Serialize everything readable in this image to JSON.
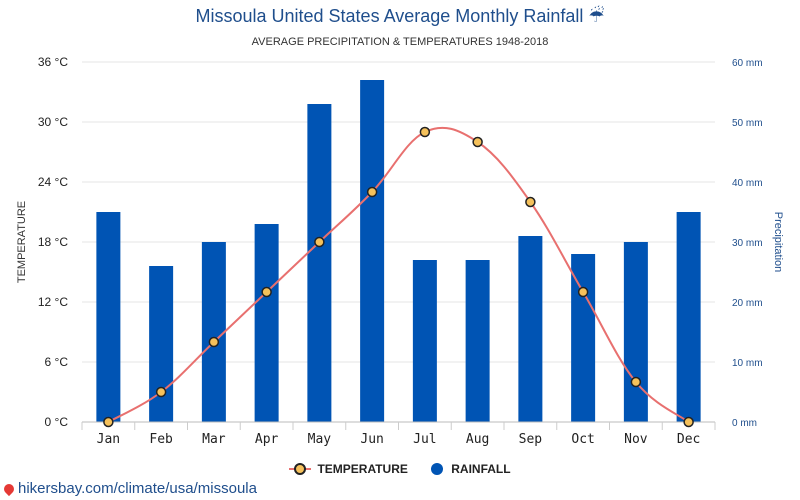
{
  "title": "Missoula United States Average Monthly Rainfall ☔",
  "subtitle": "AVERAGE PRECIPITATION & TEMPERATURES 1948-2018",
  "credit": "hikersbay.com/climate/usa/missoula",
  "colors": {
    "bar": "#0054b4",
    "line": "#e8706f",
    "marker": "#f5c15b",
    "grid": "#e6e6e6",
    "axis_right": "#1f4e8c"
  },
  "chart_data": {
    "type": "bar",
    "categories": [
      "Jan",
      "Feb",
      "Mar",
      "Apr",
      "May",
      "Jun",
      "Jul",
      "Aug",
      "Sep",
      "Oct",
      "Nov",
      "Dec"
    ],
    "series": [
      {
        "name": "TEMPERATURE",
        "type": "line",
        "axis": "left",
        "values": [
          0,
          3,
          8,
          13,
          18,
          23,
          29,
          28,
          22,
          13,
          4,
          0
        ]
      },
      {
        "name": "RAINFALL",
        "type": "bar",
        "axis": "right",
        "values": [
          35,
          26,
          30,
          33,
          53,
          57,
          27,
          27,
          31,
          28,
          30,
          35
        ]
      }
    ],
    "y_left": {
      "label": "TEMPERATURE",
      "ylim": [
        0,
        36
      ],
      "ticks": [
        "0 °C",
        "6 °C",
        "12 °C",
        "18 °C",
        "24 °C",
        "30 °C",
        "36 °C"
      ]
    },
    "y_right": {
      "label": "Precipitation",
      "ylim": [
        0,
        60
      ],
      "ticks": [
        "0 mm",
        "10 mm",
        "20 mm",
        "30 mm",
        "40 mm",
        "50 mm",
        "60 mm"
      ]
    },
    "grid": true,
    "legend_position": "bottom"
  }
}
